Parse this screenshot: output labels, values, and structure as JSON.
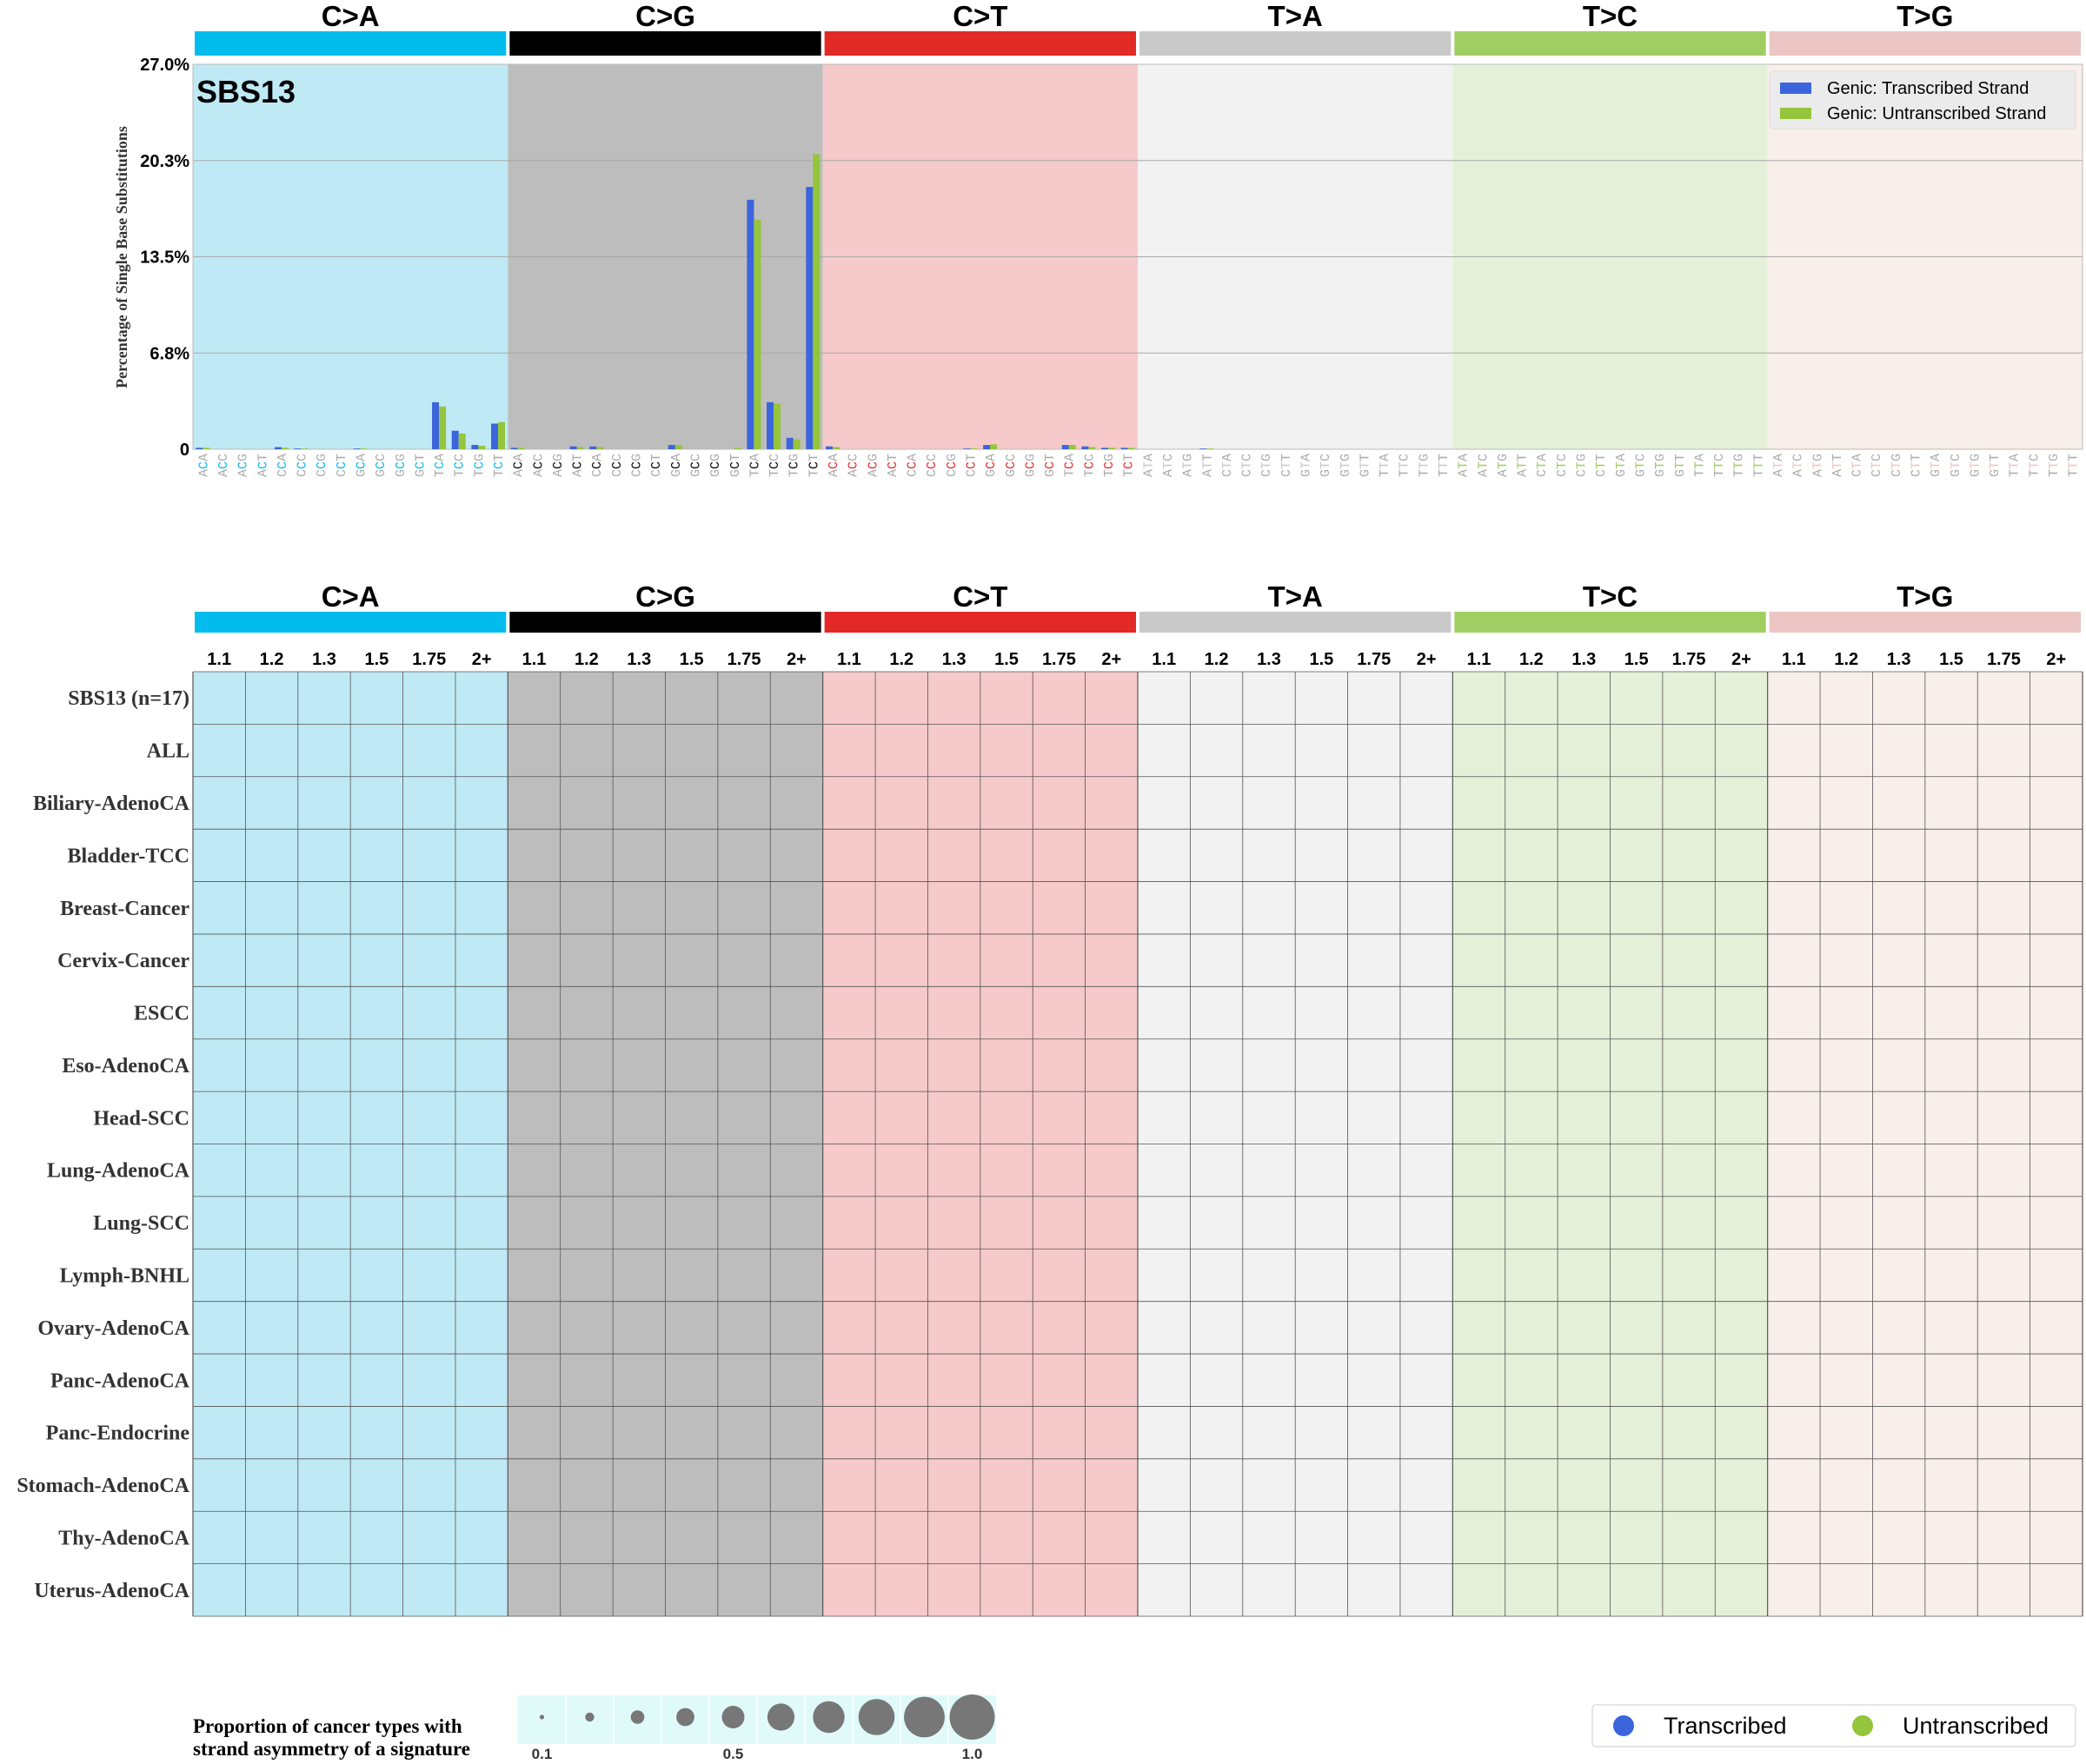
{
  "chart_data": [
    {
      "type": "bar",
      "title": "SBS13",
      "xlabel": "",
      "ylabel": "Percentage of Single Base Substitutions",
      "ylim": [
        0,
        27.0
      ],
      "ytick_labels": [
        "0",
        "6.8%",
        "13.5%",
        "20.3%",
        "27.0%"
      ],
      "grid": true,
      "legend_position": "top-right",
      "mutation_types": [
        "C>A",
        "C>G",
        "C>T",
        "T>A",
        "T>C",
        "T>G"
      ],
      "type_colors": [
        "#03bcee",
        "#010101",
        "#e32926",
        "#cac9c9",
        "#a1ce63",
        "#ebc6c4"
      ],
      "background_colors": [
        "#bfeaf5",
        "#bdbdbd",
        "#f6c9ca",
        "#f2f2f2",
        "#e5f0d8",
        "#f8eeea"
      ],
      "contexts": [
        [
          "ACA",
          "ACC",
          "ACG",
          "ACT",
          "CCA",
          "CCC",
          "CCG",
          "CCT",
          "GCA",
          "GCC",
          "GCG",
          "GCT",
          "TCA",
          "TCC",
          "TCG",
          "TCT"
        ],
        [
          "ACA",
          "ACC",
          "ACG",
          "ACT",
          "CCA",
          "CCC",
          "CCG",
          "CCT",
          "GCA",
          "GCC",
          "GCG",
          "GCT",
          "TCA",
          "TCC",
          "TCG",
          "TCT"
        ],
        [
          "ACA",
          "ACC",
          "ACG",
          "ACT",
          "CCA",
          "CCC",
          "CCG",
          "CCT",
          "GCA",
          "GCC",
          "GCG",
          "GCT",
          "TCA",
          "TCC",
          "TCG",
          "TCT"
        ],
        [
          "ATA",
          "ATC",
          "ATG",
          "ATT",
          "CTA",
          "CTC",
          "CTG",
          "CTT",
          "GTA",
          "GTC",
          "GTG",
          "GTT",
          "TTA",
          "TTC",
          "TTG",
          "TTT"
        ],
        [
          "ATA",
          "ATC",
          "ATG",
          "ATT",
          "CTA",
          "CTC",
          "CTG",
          "CTT",
          "GTA",
          "GTC",
          "GTG",
          "GTT",
          "TTA",
          "TTC",
          "TTG",
          "TTT"
        ],
        [
          "ATA",
          "ATC",
          "ATG",
          "ATT",
          "CTA",
          "CTC",
          "CTG",
          "CTT",
          "GTA",
          "GTC",
          "GTG",
          "GTT",
          "TTA",
          "TTC",
          "TTG",
          "TTT"
        ]
      ],
      "series": [
        {
          "name": "Genic: Transcribed Strand",
          "color": "#3c64dc",
          "values": [
            [
              0.1,
              0,
              0,
              0,
              0.15,
              0.05,
              0,
              0,
              0.05,
              0,
              0,
              0,
              3.3,
              1.3,
              0.3,
              1.8
            ],
            [
              0.1,
              0,
              0,
              0.2,
              0.2,
              0,
              0,
              0,
              0.3,
              0,
              0,
              0,
              17.5,
              3.3,
              0.8,
              18.4
            ],
            [
              0.2,
              0,
              0,
              0,
              0,
              0,
              0,
              0.05,
              0.3,
              0,
              0,
              0,
              0.3,
              0.2,
              0.1,
              0.1
            ],
            [
              0,
              0,
              0,
              0.05,
              0,
              0,
              0,
              0,
              0,
              0,
              0,
              0,
              0,
              0,
              0,
              0
            ],
            [
              0,
              0,
              0,
              0,
              0,
              0,
              0,
              0,
              0,
              0,
              0,
              0,
              0,
              0,
              0,
              0
            ],
            [
              0,
              0,
              0,
              0,
              0,
              0,
              0,
              0,
              0,
              0,
              0,
              0,
              0,
              0,
              0,
              0
            ]
          ]
        },
        {
          "name": "Genic: Untranscribed Strand",
          "color": "#94c53c",
          "values": [
            [
              0.1,
              0,
              0,
              0,
              0.1,
              0.05,
              0,
              0,
              0.05,
              0,
              0,
              0,
              3.0,
              1.1,
              0.25,
              1.9
            ],
            [
              0.1,
              0,
              0,
              0.15,
              0.15,
              0,
              0,
              0,
              0.3,
              0,
              0,
              0.1,
              16.1,
              3.2,
              0.7,
              20.7
            ],
            [
              0.15,
              0,
              0,
              0,
              0,
              0,
              0,
              0.05,
              0.35,
              0,
              0,
              0,
              0.3,
              0.15,
              0.1,
              0.1
            ],
            [
              0,
              0,
              0,
              0.05,
              0,
              0,
              0,
              0,
              0,
              0,
              0,
              0,
              0,
              0,
              0,
              0
            ],
            [
              0,
              0,
              0,
              0,
              0,
              0,
              0,
              0,
              0,
              0,
              0,
              0,
              0,
              0,
              0,
              0
            ],
            [
              0,
              0,
              0,
              0,
              0,
              0,
              0,
              0,
              0,
              0,
              0,
              0,
              0,
              0,
              0,
              0
            ]
          ]
        }
      ]
    },
    {
      "type": "heatmap",
      "title": "",
      "mutation_types": [
        "C>A",
        "C>G",
        "C>T",
        "T>A",
        "T>C",
        "T>G"
      ],
      "thresholds": [
        "1.1",
        "1.2",
        "1.3",
        "1.5",
        "1.75",
        "2+"
      ],
      "rows": [
        "SBS13 (n=17)",
        "ALL",
        "Biliary-AdenoCA",
        "Bladder-TCC",
        "Breast-Cancer",
        "Cervix-Cancer",
        "ESCC",
        "Eso-AdenoCA",
        "Head-SCC",
        "Lung-AdenoCA",
        "Lung-SCC",
        "Lymph-BNHL",
        "Ovary-AdenoCA",
        "Panc-AdenoCA",
        "Panc-Endocrine",
        "Stomach-AdenoCA",
        "Thy-AdenoCA",
        "Uterus-AdenoCA"
      ],
      "values": []
    }
  ],
  "bubble_legend": {
    "title_lines": [
      "Proportion of cancer types with",
      "strand asymmetry of a signature"
    ],
    "proportions": [
      0.1,
      0.2,
      0.3,
      0.4,
      0.5,
      0.6,
      0.7,
      0.8,
      0.9,
      1.0
    ],
    "tick_labels": [
      "0.1",
      "0.5",
      "1.0"
    ],
    "bg_color": "#e0fafa",
    "bubble_color": "#777777"
  },
  "strand_legend": {
    "items": [
      {
        "label": "Transcribed",
        "color": "#3c64dc"
      },
      {
        "label": "Untranscribed",
        "color": "#94c53c"
      }
    ]
  }
}
